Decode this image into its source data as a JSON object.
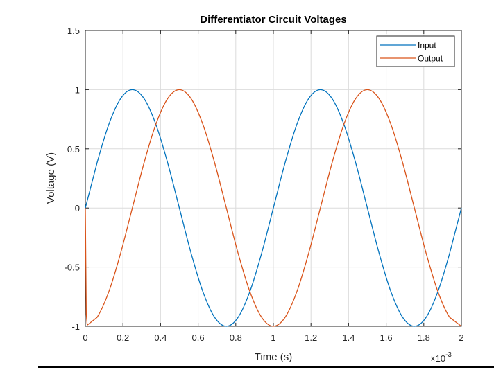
{
  "chart_data": {
    "type": "line",
    "title": "Differentiator Circuit Voltages",
    "xlabel": "Time (s)",
    "ylabel": "Voltage (V)",
    "x_exponent": "×10",
    "x_exponent_power": "-3",
    "xlim": [
      0,
      0.002
    ],
    "ylim": [
      -1,
      1.5
    ],
    "xticks": [
      0,
      0.0002,
      0.0004,
      0.0006,
      0.0008,
      0.001,
      0.0012,
      0.0014,
      0.0016,
      0.0018,
      0.002
    ],
    "xtick_labels": [
      "0",
      "0.2",
      "0.4",
      "0.6",
      "0.8",
      "1",
      "1.2",
      "1.4",
      "1.6",
      "1.8",
      "2"
    ],
    "yticks": [
      -1,
      -0.5,
      0,
      0.5,
      1,
      1.5
    ],
    "ytick_labels": [
      "-1",
      "-0.5",
      "0",
      "0.5",
      "1",
      "1.5"
    ],
    "grid": true,
    "legend_position": "top-right",
    "series": [
      {
        "name": "Input",
        "color": "#0072BD",
        "x": [
          0,
          6.25e-05,
          0.000125,
          0.0001875,
          0.00025,
          0.0003125,
          0.000375,
          0.0004375,
          0.0005,
          0.0005625,
          0.000625,
          0.0006875,
          0.00075,
          0.0008125,
          0.000875,
          0.0009375,
          0.001,
          0.0010625,
          0.001125,
          0.0011875,
          0.00125,
          0.0013125,
          0.001375,
          0.0014375,
          0.0015,
          0.0015625,
          0.001625,
          0.0016875,
          0.00175,
          0.0018125,
          0.001875,
          0.0019375,
          0.002
        ],
        "y": [
          0,
          0.383,
          0.707,
          0.924,
          1,
          0.924,
          0.707,
          0.383,
          0,
          -0.383,
          -0.707,
          -0.924,
          -1,
          -0.924,
          -0.707,
          -0.383,
          0,
          0.383,
          0.707,
          0.924,
          1,
          0.924,
          0.707,
          0.383,
          0,
          -0.383,
          -0.707,
          -0.924,
          -1,
          -0.924,
          -0.707,
          -0.383,
          0
        ]
      },
      {
        "name": "Output",
        "color": "#D95319",
        "x": [
          0,
          5e-06,
          1e-05,
          6.25e-05,
          0.000125,
          0.0001875,
          0.00025,
          0.0003125,
          0.000375,
          0.0004375,
          0.0005,
          0.0005625,
          0.000625,
          0.0006875,
          0.00075,
          0.0008125,
          0.000875,
          0.0009375,
          0.001,
          0.0010625,
          0.001125,
          0.0011875,
          0.00125,
          0.0013125,
          0.001375,
          0.0014375,
          0.0015,
          0.0015625,
          0.001625,
          0.0016875,
          0.00175,
          0.0018125,
          0.001875,
          0.0019375,
          0.002
        ],
        "y": [
          0,
          -0.9,
          -0.99,
          -0.924,
          -0.707,
          -0.383,
          0,
          0.383,
          0.707,
          0.924,
          1,
          0.924,
          0.707,
          0.383,
          0,
          -0.383,
          -0.707,
          -0.924,
          -1,
          -0.924,
          -0.707,
          -0.383,
          0,
          0.383,
          0.707,
          0.924,
          1,
          0.924,
          0.707,
          0.383,
          0,
          -0.383,
          -0.707,
          -0.924,
          -1
        ]
      }
    ]
  }
}
